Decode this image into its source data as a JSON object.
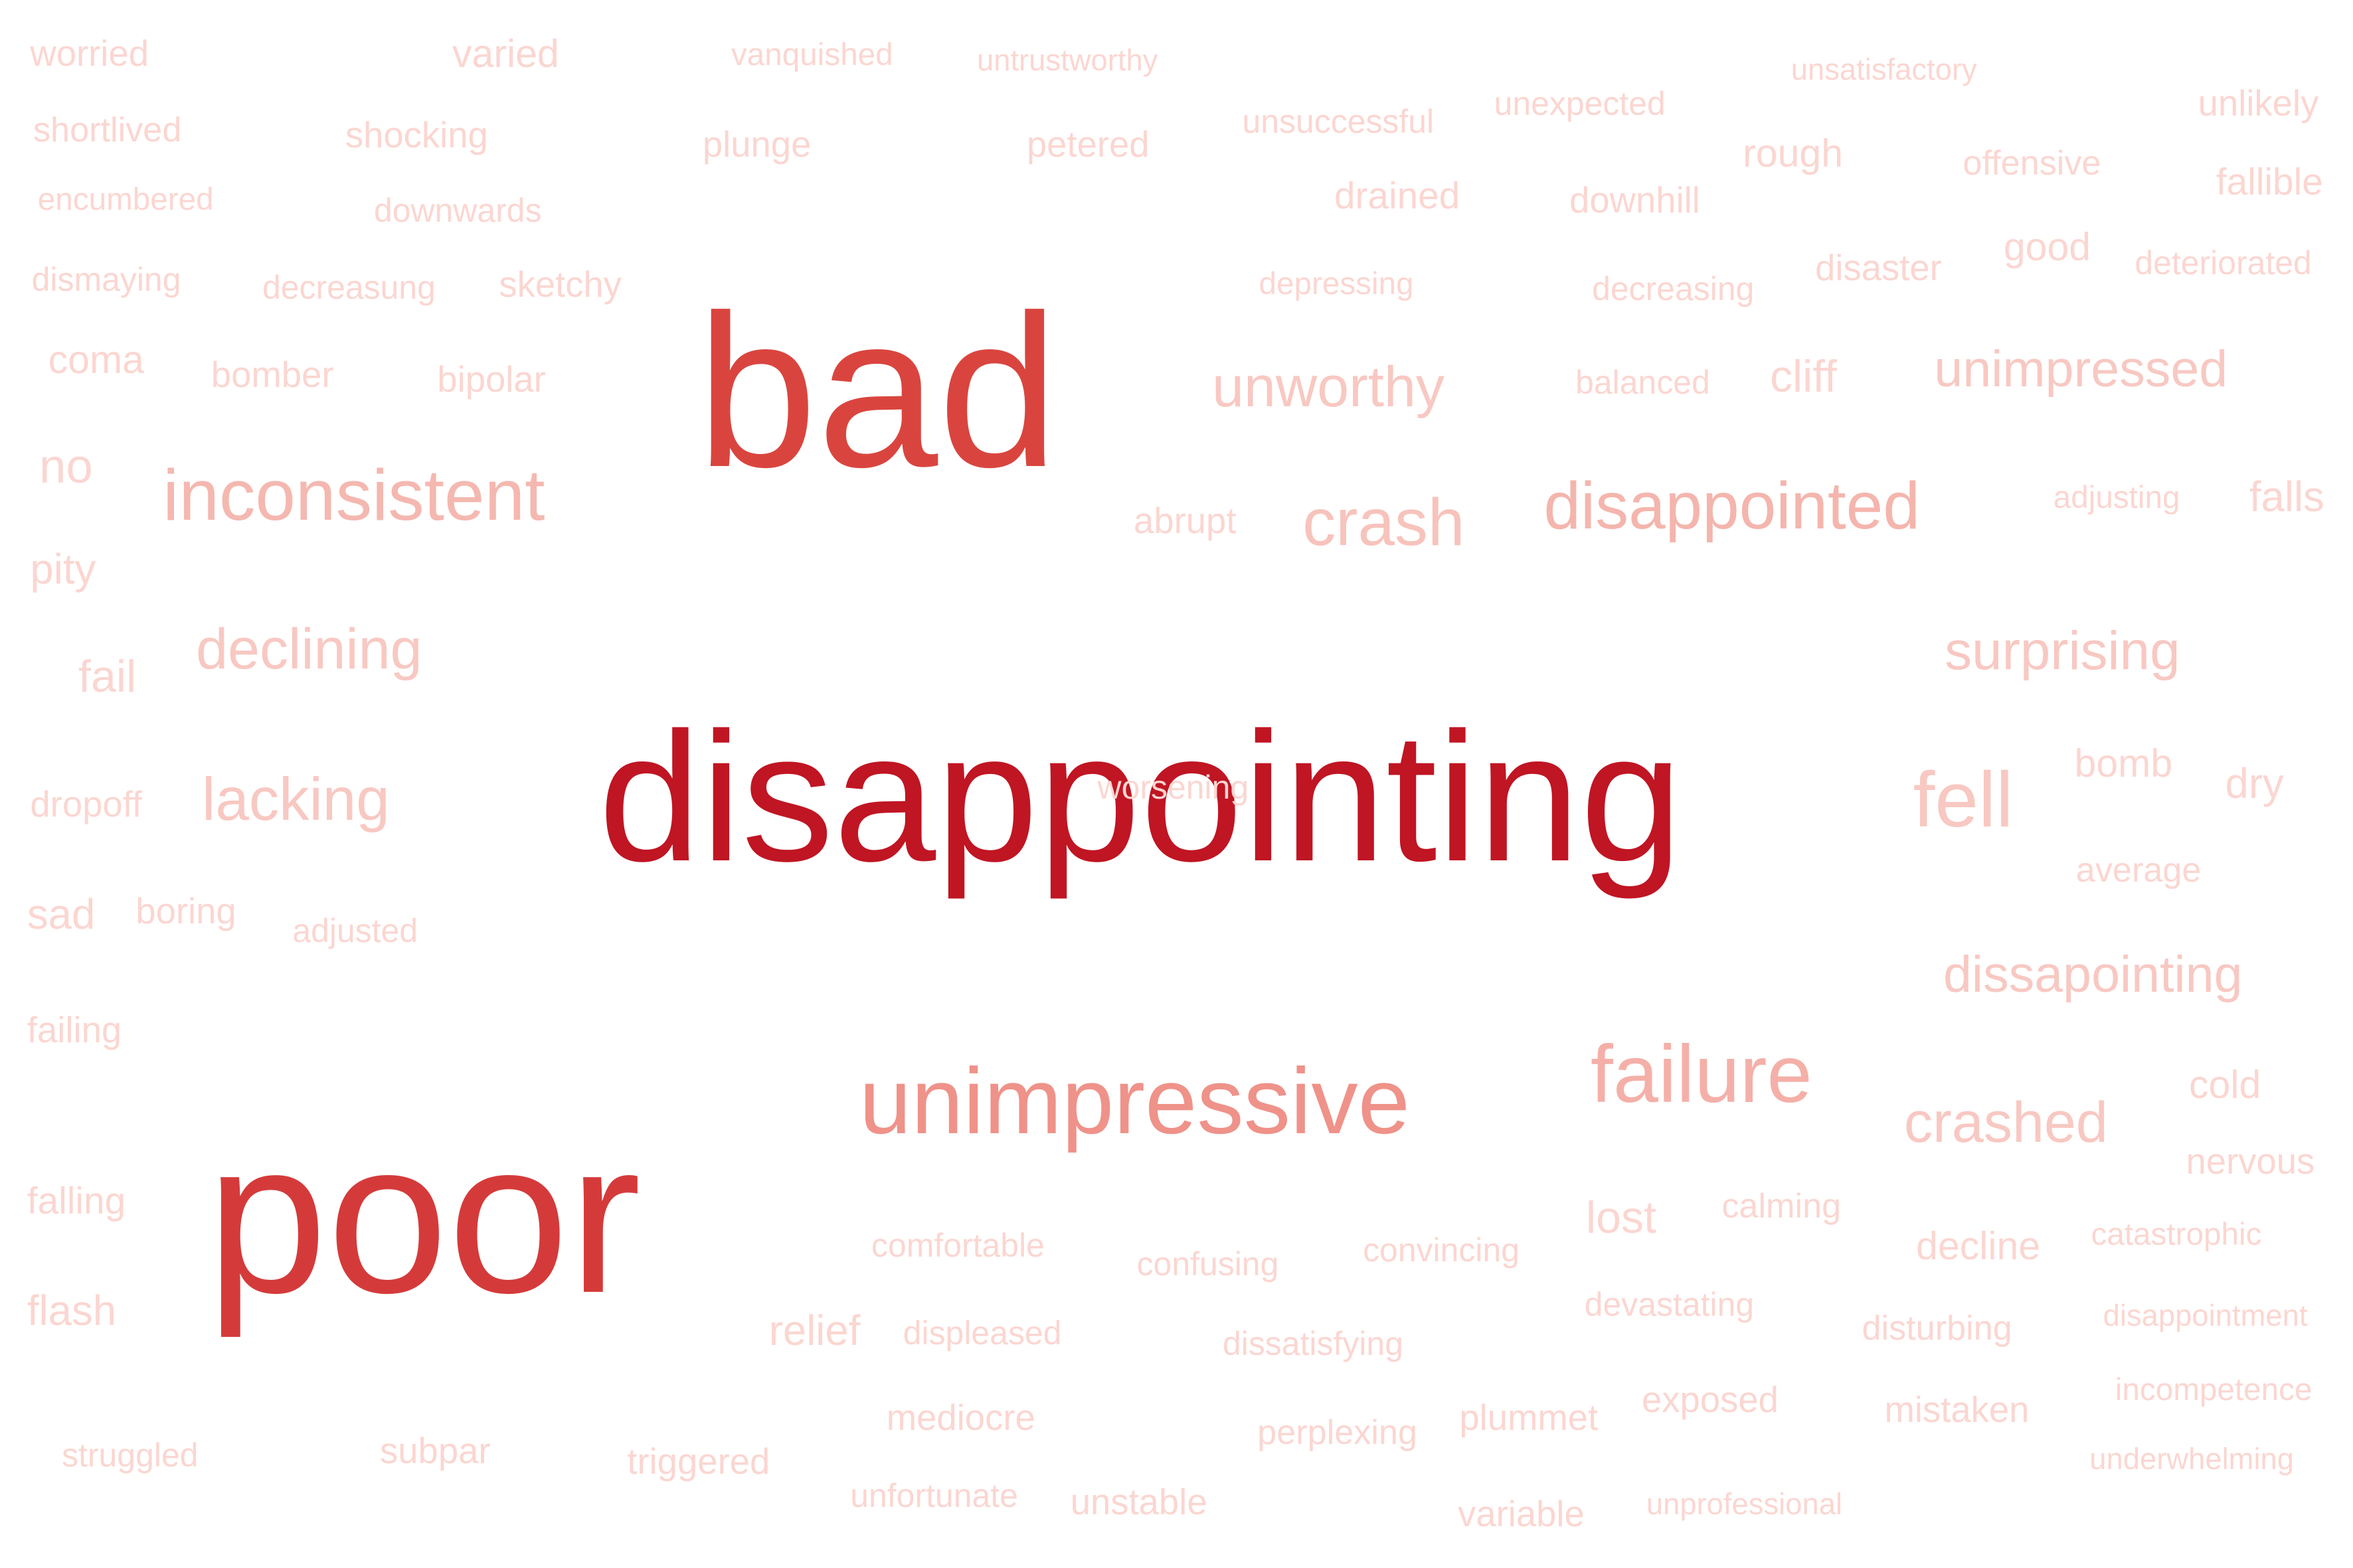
{
  "words": [
    {
      "text": "disappointing",
      "color": "#c01523"
    },
    {
      "text": "bad",
      "color": "#d9453e"
    },
    {
      "text": "poor",
      "color": "#d53a3a"
    },
    {
      "text": "unimpressive",
      "color": "#ef9289"
    },
    {
      "text": "failure",
      "color": "#f4b0a8"
    },
    {
      "text": "disappointed",
      "color": "#f4b5ad"
    },
    {
      "text": "inconsistent",
      "color": "#f4b8b0"
    },
    {
      "text": "crash",
      "color": "#f7c3bc"
    },
    {
      "text": "unworthy",
      "color": "#f8c8c2"
    },
    {
      "text": "unimpressed",
      "color": "#f8c8c2"
    },
    {
      "text": "declining",
      "color": "#f8c8c2"
    },
    {
      "text": "lacking",
      "color": "#f8c8c2"
    },
    {
      "text": "fell",
      "color": "#f8c8c2"
    },
    {
      "text": "surprising",
      "color": "#f8c8c2"
    },
    {
      "text": "dissapointing",
      "color": "#f8c8c2"
    },
    {
      "text": "crashed",
      "color": "#f8c8c2"
    },
    {
      "text": "worried",
      "color": "#fbd6d1"
    },
    {
      "text": "varied",
      "color": "#fbd6d1"
    },
    {
      "text": "vanquished",
      "color": "#fbd6d1"
    },
    {
      "text": "untrustworthy",
      "color": "#fbd6d1"
    },
    {
      "text": "unsatisfactory",
      "color": "#fbd6d1"
    },
    {
      "text": "unlikely",
      "color": "#fbd6d1"
    },
    {
      "text": "shortlived",
      "color": "#fbd6d1"
    },
    {
      "text": "shocking",
      "color": "#fbd6d1"
    },
    {
      "text": "plunge",
      "color": "#fbd6d1"
    },
    {
      "text": "petered",
      "color": "#fbd6d1"
    },
    {
      "text": "unsuccessful",
      "color": "#fbd6d1"
    },
    {
      "text": "unexpected",
      "color": "#fbd6d1"
    },
    {
      "text": "rough",
      "color": "#fbd6d1"
    },
    {
      "text": "offensive",
      "color": "#fbd6d1"
    },
    {
      "text": "fallible",
      "color": "#fbd6d1"
    },
    {
      "text": "encumbered",
      "color": "#fbd6d1"
    },
    {
      "text": "downwards",
      "color": "#fbd6d1"
    },
    {
      "text": "drained",
      "color": "#fbd6d1"
    },
    {
      "text": "downhill",
      "color": "#fbd6d1"
    },
    {
      "text": "good",
      "color": "#fbd6d1"
    },
    {
      "text": "dismaying",
      "color": "#fbd6d1"
    },
    {
      "text": "decreasung",
      "color": "#fbd6d1"
    },
    {
      "text": "sketchy",
      "color": "#fbd6d1"
    },
    {
      "text": "depressing",
      "color": "#fbd6d1"
    },
    {
      "text": "decreasing",
      "color": "#fbd6d1"
    },
    {
      "text": "disaster",
      "color": "#fbd6d1"
    },
    {
      "text": "deteriorated",
      "color": "#fbd6d1"
    },
    {
      "text": "coma",
      "color": "#fbd6d1"
    },
    {
      "text": "bomber",
      "color": "#fbd6d1"
    },
    {
      "text": "bipolar",
      "color": "#fbd6d1"
    },
    {
      "text": "balanced",
      "color": "#fbd6d1"
    },
    {
      "text": "cliff",
      "color": "#fbd6d1"
    },
    {
      "text": "no",
      "color": "#fbd6d1"
    },
    {
      "text": "abrupt",
      "color": "#fbd6d1"
    },
    {
      "text": "adjusting",
      "color": "#fbd6d1"
    },
    {
      "text": "falls",
      "color": "#fbd6d1"
    },
    {
      "text": "pity",
      "color": "#fbd6d1"
    },
    {
      "text": "fail",
      "color": "#fbd6d1"
    },
    {
      "text": "dropoff",
      "color": "#fbd6d1"
    },
    {
      "text": "worsening",
      "color": "#fbd6d1"
    },
    {
      "text": "bomb",
      "color": "#fbd6d1"
    },
    {
      "text": "dry",
      "color": "#fbd6d1"
    },
    {
      "text": "average",
      "color": "#fbd6d1"
    },
    {
      "text": "sad",
      "color": "#fbd6d1"
    },
    {
      "text": "boring",
      "color": "#fbd6d1"
    },
    {
      "text": "adjusted",
      "color": "#fbd6d1"
    },
    {
      "text": "failing",
      "color": "#fbd6d1"
    },
    {
      "text": "cold",
      "color": "#fbd6d1"
    },
    {
      "text": "nervous",
      "color": "#fbd6d1"
    },
    {
      "text": "falling",
      "color": "#fbd6d1"
    },
    {
      "text": "comfortable",
      "color": "#fbd6d1"
    },
    {
      "text": "confusing",
      "color": "#fbd6d1"
    },
    {
      "text": "convincing",
      "color": "#fbd6d1"
    },
    {
      "text": "lost",
      "color": "#fbd6d1"
    },
    {
      "text": "calming",
      "color": "#fbd6d1"
    },
    {
      "text": "decline",
      "color": "#fbd6d1"
    },
    {
      "text": "catastrophic",
      "color": "#fbd6d1"
    },
    {
      "text": "flash",
      "color": "#fbd6d1"
    },
    {
      "text": "relief",
      "color": "#fbd6d1"
    },
    {
      "text": "displeased",
      "color": "#fbd6d1"
    },
    {
      "text": "dissatisfying",
      "color": "#fbd6d1"
    },
    {
      "text": "devastating",
      "color": "#fbd6d1"
    },
    {
      "text": "disturbing",
      "color": "#fbd6d1"
    },
    {
      "text": "disappointment",
      "color": "#fbd6d1"
    },
    {
      "text": "mediocre",
      "color": "#fbd6d1"
    },
    {
      "text": "perplexing",
      "color": "#fbd6d1"
    },
    {
      "text": "plummet",
      "color": "#fbd6d1"
    },
    {
      "text": "exposed",
      "color": "#fbd6d1"
    },
    {
      "text": "mistaken",
      "color": "#fbd6d1"
    },
    {
      "text": "incompetence",
      "color": "#fbd6d1"
    },
    {
      "text": "struggled",
      "color": "#fbd6d1"
    },
    {
      "text": "subpar",
      "color": "#fbd6d1"
    },
    {
      "text": "triggered",
      "color": "#fbd6d1"
    },
    {
      "text": "unfortunate",
      "color": "#fbd6d1"
    },
    {
      "text": "unstable",
      "color": "#fbd6d1"
    },
    {
      "text": "variable",
      "color": "#fbd6d1"
    },
    {
      "text": "unprofessional",
      "color": "#fbd6d1"
    },
    {
      "text": "underwhelming",
      "color": "#fbd6d1"
    }
  ]
}
